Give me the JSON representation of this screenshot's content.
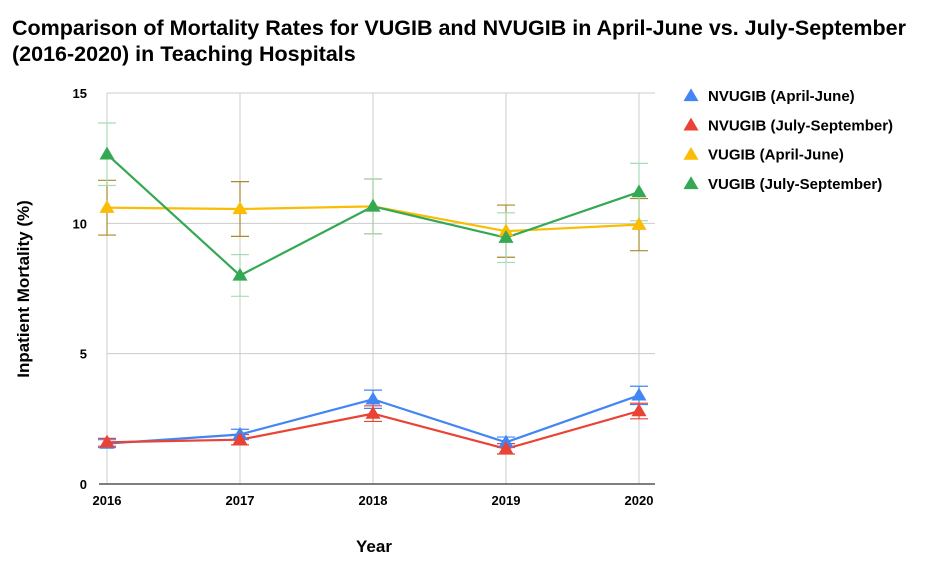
{
  "chart_data": {
    "type": "line",
    "title": "Comparison of Mortality Rates for VUGIB and NVUGIB in April-June vs. July-September (2016-2020) in Teaching Hospitals",
    "xlabel": "Year",
    "ylabel": "Inpatient Mortality (%)",
    "categories": [
      "2016",
      "2017",
      "2018",
      "2019",
      "2020"
    ],
    "ylim": [
      0,
      15
    ],
    "yticks": [
      0,
      5,
      10,
      15
    ],
    "grid": true,
    "legend": "right",
    "series": [
      {
        "name": "NVUGIB (April-June)",
        "color": "#4285f4",
        "values": [
          1.55,
          1.9,
          3.25,
          1.6,
          3.4
        ],
        "err": [
          0.15,
          0.2,
          0.35,
          0.2,
          0.35
        ]
      },
      {
        "name": "NVUGIB (July-September)",
        "color": "#ea4335",
        "values": [
          1.6,
          1.7,
          2.7,
          1.35,
          2.8
        ],
        "err": [
          0.15,
          0.2,
          0.3,
          0.2,
          0.3
        ]
      },
      {
        "name": "VUGIB (April-June)",
        "color": "#fbbc04",
        "errColor": "#a8892e",
        "values": [
          10.6,
          10.55,
          10.65,
          9.7,
          9.95
        ],
        "err": [
          1.05,
          1.05,
          1.05,
          1.0,
          1.0
        ]
      },
      {
        "name": "VUGIB (July-September)",
        "color": "#34a853",
        "errColor": "#a8dcb5",
        "values": [
          12.65,
          8.0,
          10.65,
          9.45,
          11.2
        ],
        "err": [
          1.2,
          0.8,
          1.05,
          0.95,
          1.1
        ]
      }
    ]
  }
}
